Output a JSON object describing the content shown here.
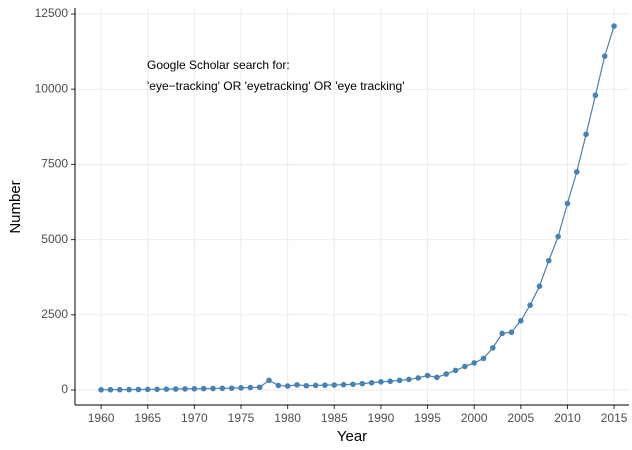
{
  "chart_data": {
    "type": "line",
    "x_label": "Year",
    "y_label": "Number",
    "annotations": [
      "Google Scholar search for:",
      "'eye−tracking' OR 'eyetracking' OR 'eye tracking'"
    ],
    "x": [
      1960,
      1961,
      1962,
      1963,
      1964,
      1965,
      1966,
      1967,
      1968,
      1969,
      1970,
      1971,
      1972,
      1973,
      1974,
      1975,
      1976,
      1977,
      1978,
      1979,
      1980,
      1981,
      1982,
      1983,
      1984,
      1985,
      1986,
      1987,
      1988,
      1989,
      1990,
      1991,
      1992,
      1993,
      1994,
      1995,
      1996,
      1997,
      1998,
      1999,
      2000,
      2001,
      2002,
      2003,
      2004,
      2005,
      2006,
      2007,
      2008,
      2009,
      2010,
      2011,
      2012,
      2013,
      2014,
      2015
    ],
    "series": [
      {
        "name": "Number",
        "color": "#4682b4",
        "values": [
          5,
          8,
          10,
          12,
          15,
          18,
          22,
          28,
          32,
          35,
          40,
          45,
          50,
          55,
          60,
          70,
          80,
          90,
          320,
          150,
          130,
          170,
          140,
          150,
          160,
          165,
          175,
          190,
          210,
          240,
          270,
          290,
          320,
          350,
          400,
          480,
          420,
          530,
          650,
          780,
          900,
          1050,
          1400,
          1880,
          1920,
          2300,
          2820,
          3450,
          4300,
          5100,
          6200,
          7250,
          8500,
          9800,
          11100,
          12100
        ]
      }
    ],
    "xlim": [
      1957.2,
      2016.6
    ],
    "ylim": [
      -500,
      12700
    ],
    "xticks": [
      1960,
      1965,
      1970,
      1975,
      1980,
      1985,
      1990,
      1995,
      2000,
      2005,
      2010,
      2015
    ],
    "yticks": [
      0,
      2500,
      5000,
      7500,
      10000,
      12500
    ],
    "grid": true
  }
}
